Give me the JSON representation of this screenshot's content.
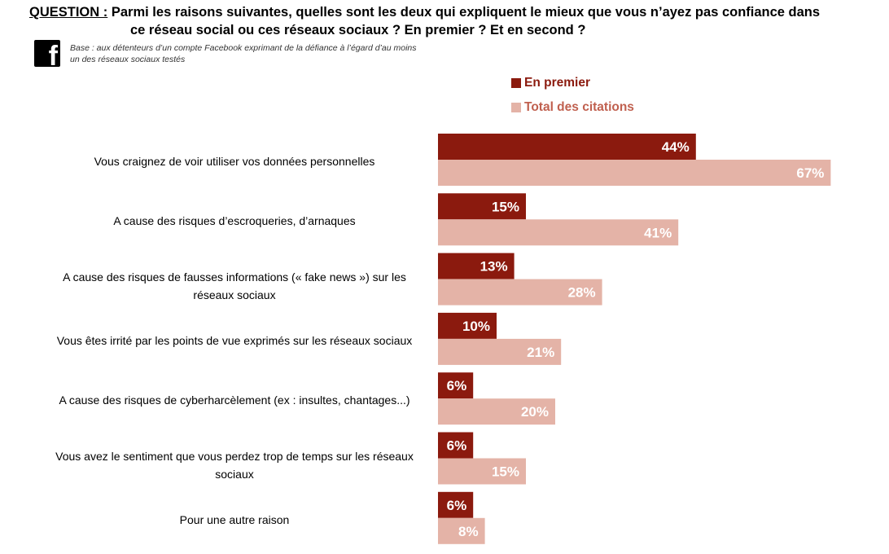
{
  "question": {
    "label": "QUESTION :",
    "text_line1": "Parmi les raisons suivantes, quelles sont les deux qui expliquent le mieux que vous n’ayez pas confiance dans",
    "text_line2": "ce réseau social ou ces réseaux sociaux ? En premier ? Et en second ?"
  },
  "logo": {
    "icon": "facebook-icon",
    "glyph": "f"
  },
  "base_note": "Base : aux détenteurs d’un compte Facebook  exprimant de la défiance à l’égard d’au moins un des réseaux sociaux testés",
  "colors": {
    "en_premier": "#8b1a0e",
    "total": "#e4b3a7",
    "legend_total_text": "#c0604f"
  },
  "chart_data": {
    "type": "bar",
    "orientation": "horizontal",
    "categories": [
      "Vous craignez de voir utiliser vos données personnelles",
      "A cause des risques d’escroqueries, d’arnaques",
      "A cause des risques de fausses informations (« fake news ») sur les réseaux sociaux",
      "Vous êtes irrité par les points de vue exprimés sur les réseaux sociaux",
      "A cause des risques de cyberharcèlement (ex : insultes, chantages...)",
      "Vous avez le sentiment que vous perdez trop de temps sur les réseaux sociaux",
      "Pour une autre raison"
    ],
    "series": [
      {
        "name": "En premier",
        "values": [
          44,
          15,
          13,
          10,
          6,
          6,
          6
        ],
        "labels": [
          "44%",
          "15%",
          "13%",
          "10%",
          "6%",
          "6%",
          "6%"
        ]
      },
      {
        "name": "Total des citations",
        "values": [
          67,
          41,
          28,
          21,
          20,
          15,
          8
        ],
        "labels": [
          "67%",
          "41%",
          "28%",
          "21%",
          "20%",
          "15%",
          "8%"
        ]
      }
    ],
    "unit": "%",
    "legend_position": "top-right",
    "grid": false
  }
}
